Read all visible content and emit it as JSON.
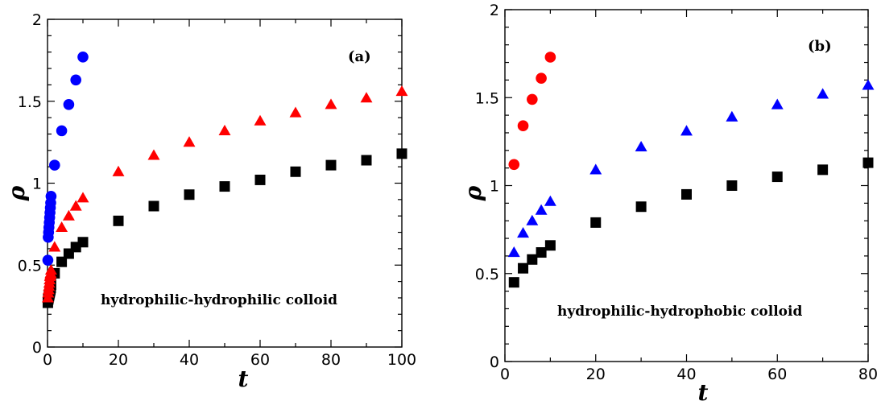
{
  "chart_data": [
    {
      "type": "scatter",
      "panel_label": "(a)",
      "annotation": "hydrophilic-hydrophilic colloid",
      "xlabel": "t",
      "ylabel": "ρ",
      "xlim": [
        0,
        100
      ],
      "ylim": [
        0,
        2
      ],
      "xticks": [
        "0",
        "20",
        "40",
        "60",
        "80",
        "100"
      ],
      "yticks": [
        "0",
        "0.5",
        "1",
        "1.5",
        "2"
      ],
      "xtick_values": [
        0,
        20,
        40,
        60,
        80,
        100
      ],
      "ytick_values": [
        0,
        0.5,
        1,
        1.5,
        2
      ],
      "grid": false,
      "series": [
        {
          "marker": "square",
          "color": "#000000",
          "x": [
            0.1,
            0.2,
            0.3,
            0.4,
            0.5,
            0.6,
            0.7,
            0.8,
            0.9,
            1,
            2,
            4,
            6,
            8,
            10,
            20,
            30,
            40,
            50,
            60,
            70,
            80,
            90,
            100
          ],
          "y": [
            0.27,
            0.29,
            0.3,
            0.31,
            0.32,
            0.33,
            0.34,
            0.35,
            0.36,
            0.38,
            0.45,
            0.52,
            0.57,
            0.61,
            0.64,
            0.77,
            0.86,
            0.93,
            0.98,
            1.02,
            1.07,
            1.11,
            1.14,
            1.18
          ]
        },
        {
          "marker": "triangle",
          "color": "#ff0000",
          "x": [
            0.1,
            0.2,
            0.3,
            0.4,
            0.5,
            0.6,
            0.7,
            0.8,
            0.9,
            1,
            2,
            4,
            6,
            8,
            10,
            20,
            30,
            40,
            50,
            60,
            70,
            80,
            90,
            100
          ],
          "y": [
            0.3,
            0.33,
            0.35,
            0.37,
            0.39,
            0.41,
            0.43,
            0.44,
            0.45,
            0.47,
            0.61,
            0.73,
            0.8,
            0.86,
            0.91,
            1.07,
            1.17,
            1.25,
            1.32,
            1.38,
            1.43,
            1.48,
            1.52,
            1.56
          ]
        },
        {
          "marker": "circle",
          "color": "#0000ff",
          "x": [
            0.1,
            0.2,
            0.3,
            0.4,
            0.5,
            0.6,
            0.7,
            0.8,
            0.9,
            1,
            2,
            4,
            6,
            8,
            10
          ],
          "y": [
            0.53,
            0.67,
            0.7,
            0.73,
            0.76,
            0.79,
            0.82,
            0.85,
            0.88,
            0.92,
            1.11,
            1.32,
            1.48,
            1.63,
            1.77
          ]
        }
      ]
    },
    {
      "type": "scatter",
      "panel_label": "(b)",
      "annotation": "hydrophilic-hydrophobic colloid",
      "xlabel": "t",
      "ylabel": "ρ",
      "xlim": [
        0,
        80
      ],
      "ylim": [
        0,
        2
      ],
      "xticks": [
        "0",
        "20",
        "40",
        "60",
        "80"
      ],
      "yticks": [
        "0",
        "0.5",
        "1",
        "1.5",
        "2"
      ],
      "xtick_values": [
        0,
        20,
        40,
        60,
        80
      ],
      "ytick_values": [
        0,
        0.5,
        1,
        1.5,
        2
      ],
      "grid": false,
      "series": [
        {
          "marker": "square",
          "color": "#000000",
          "x": [
            2,
            4,
            6,
            8,
            10,
            20,
            30,
            40,
            50,
            60,
            70,
            80
          ],
          "y": [
            0.45,
            0.53,
            0.58,
            0.62,
            0.66,
            0.79,
            0.88,
            0.95,
            1.0,
            1.05,
            1.09,
            1.13
          ]
        },
        {
          "marker": "triangle",
          "color": "#0000ff",
          "x": [
            2,
            4,
            6,
            8,
            10,
            20,
            30,
            40,
            50,
            60,
            70,
            80
          ],
          "y": [
            0.62,
            0.73,
            0.8,
            0.86,
            0.91,
            1.09,
            1.22,
            1.31,
            1.39,
            1.46,
            1.52,
            1.57
          ]
        },
        {
          "marker": "circle",
          "color": "#ff0000",
          "x": [
            2,
            4,
            6,
            8,
            10
          ],
          "y": [
            1.12,
            1.34,
            1.49,
            1.61,
            1.73
          ]
        }
      ]
    }
  ]
}
